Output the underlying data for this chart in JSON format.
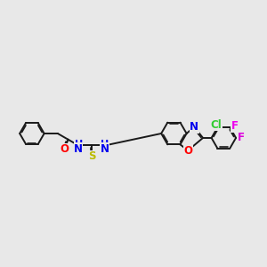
{
  "fig_bg": "#e8e8e8",
  "bond_color": "#1a1a1a",
  "bond_lw": 1.4,
  "dbo": 0.055,
  "fs": 8.5,
  "atom_colors": {
    "O": "#ff0000",
    "N": "#0000ee",
    "S": "#bbbb00",
    "Cl": "#33cc33",
    "F1": "#ee00ee",
    "F2": "#dd00dd"
  },
  "xlim": [
    0,
    12
  ],
  "ylim": [
    2,
    8
  ]
}
